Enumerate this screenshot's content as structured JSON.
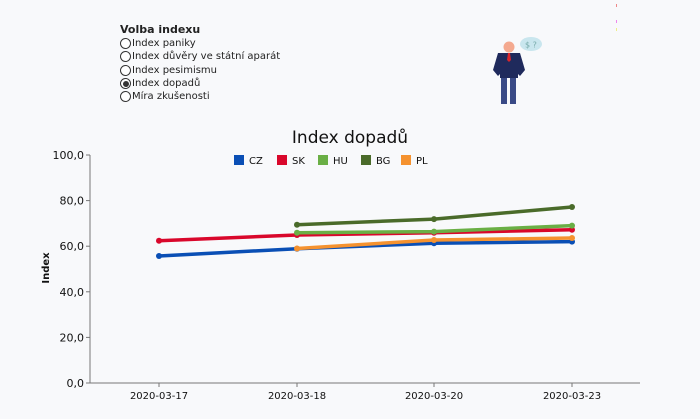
{
  "selector": {
    "title": "Volba indexu",
    "options": [
      "Index paniky",
      "Index důvěry ve státní aparát",
      "Index pesimismu",
      "Index dopadů",
      "Míra zkušenosti"
    ],
    "selected": 3
  },
  "illustration": {
    "bubble_text": "$ ?",
    "icon": "businessman-empty-pockets-icon"
  },
  "chart_data": {
    "type": "line",
    "title": "Index dopadů",
    "xlabel": "",
    "ylabel": "Index",
    "categories": [
      "2020-03-17",
      "2020-03-18",
      "2020-03-20",
      "2020-03-23"
    ],
    "ylim": [
      0,
      100
    ],
    "yticks": [
      "0,0",
      "20,0",
      "40,0",
      "60,0",
      "80,0",
      "100,0"
    ],
    "grid": false,
    "legend": "top-center",
    "series": [
      {
        "name": "CZ",
        "color": "#0a4fb5",
        "values": [
          55.7,
          58.9,
          61.3,
          62.0
        ]
      },
      {
        "name": "SK",
        "color": "#d9072b",
        "values": [
          62.4,
          64.9,
          65.9,
          67.2
        ]
      },
      {
        "name": "HU",
        "color": "#6aaf45",
        "values": [
          null,
          65.9,
          66.4,
          69.0
        ]
      },
      {
        "name": "BG",
        "color": "#4a6b2a",
        "values": [
          null,
          69.4,
          71.9,
          77.2
        ]
      },
      {
        "name": "PL",
        "color": "#f5922f",
        "values": [
          null,
          59.0,
          62.7,
          63.6
        ]
      }
    ]
  }
}
